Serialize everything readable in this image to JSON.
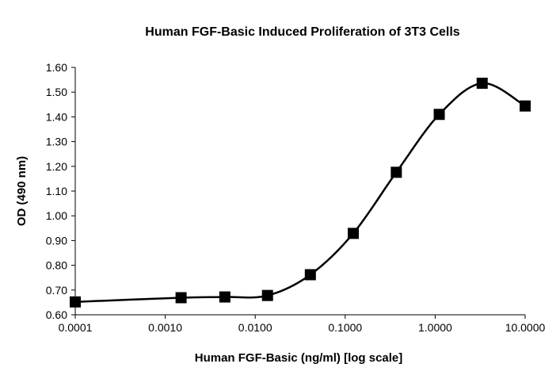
{
  "chart_data": {
    "type": "scatter",
    "title": "Human FGF-Basic Induced Proliferation of 3T3 Cells",
    "xlabel": "Human FGF-Basic (ng/ml) [log scale]",
    "ylabel": "OD (490 nm)",
    "x_scale": "log",
    "xlim": [
      0.0001,
      10.0
    ],
    "ylim": [
      0.6,
      1.6
    ],
    "x_tick_labels": [
      "0.0001",
      "0.0010",
      "0.0100",
      "0.1000",
      "1.0000",
      "10.0000"
    ],
    "y_tick_labels": [
      "0.60",
      "0.70",
      "0.80",
      "0.90",
      "1.00",
      "1.10",
      "1.20",
      "1.30",
      "1.40",
      "1.50",
      "1.60"
    ],
    "grid": false,
    "marker": "square",
    "line": "smoothed",
    "series": [
      {
        "x": [
          0.0001,
          0.0015,
          0.0046,
          0.0137,
          0.041,
          0.123,
          0.37,
          1.11,
          3.33,
          10.0
        ],
        "y": [
          0.652,
          0.669,
          0.672,
          0.678,
          0.762,
          0.929,
          1.176,
          1.41,
          1.536,
          1.444
        ]
      }
    ]
  }
}
